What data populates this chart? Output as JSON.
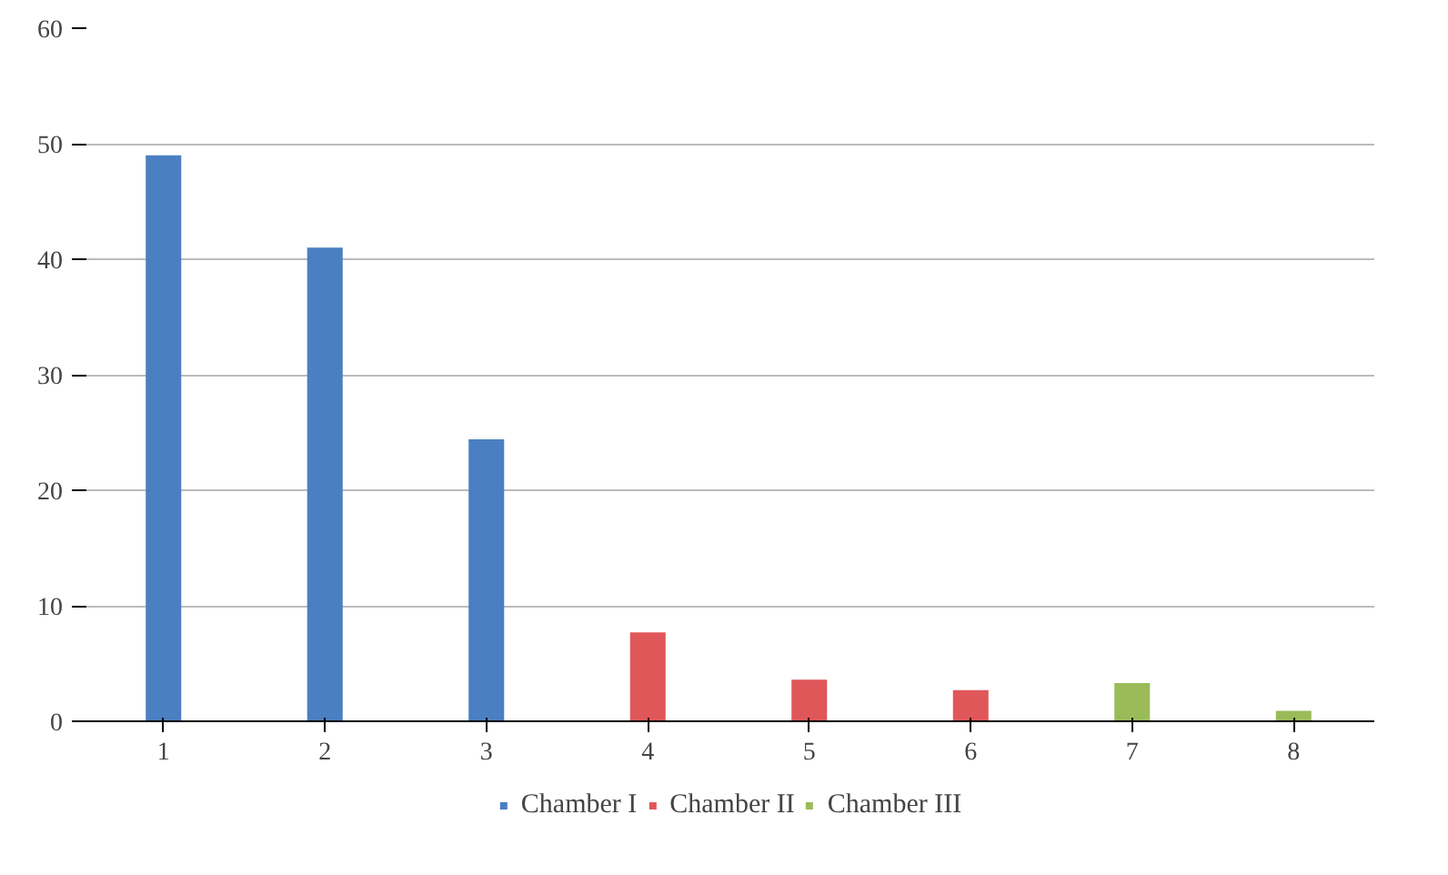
{
  "chart_data": {
    "type": "bar",
    "categories": [
      "1",
      "2",
      "3",
      "4",
      "5",
      "6",
      "7",
      "8"
    ],
    "series": [
      {
        "name": "Chamber I",
        "color": "#4a7fc1",
        "values": [
          49,
          41,
          24.4,
          null,
          null,
          null,
          null,
          null
        ]
      },
      {
        "name": "Chamber II",
        "color": "#e0575a",
        "values": [
          null,
          null,
          null,
          7.7,
          3.6,
          2.7,
          null,
          null
        ]
      },
      {
        "name": "Chamber III",
        "color": "#9bbb59",
        "values": [
          null,
          null,
          null,
          null,
          null,
          null,
          3.3,
          0.9
        ]
      }
    ],
    "ylim": [
      0,
      60
    ],
    "yticks": [
      0,
      10,
      20,
      30,
      40,
      50,
      60
    ],
    "grid": "y",
    "legend": "bottom"
  }
}
